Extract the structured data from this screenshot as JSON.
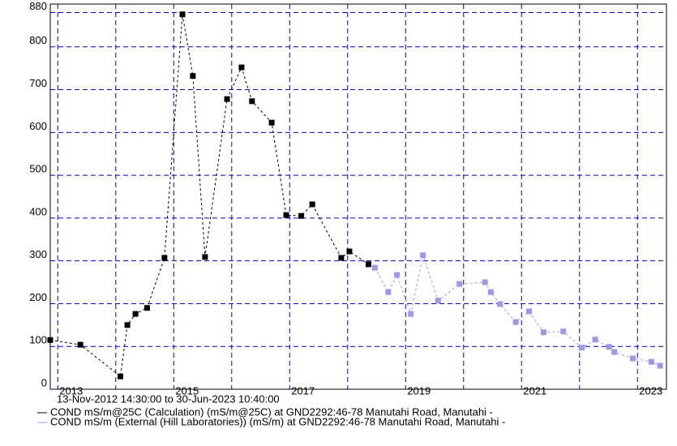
{
  "chart_data": {
    "type": "line",
    "subtitle": "13-Nov-2012 14:30:00 to 30-Jun-2023 10:40:00",
    "xlim": [
      2012.87,
      2023.5
    ],
    "xticks": [
      {
        "value": 2013,
        "label": "2013"
      },
      {
        "value": 2014,
        "label": null
      },
      {
        "value": 2015,
        "label": "2015"
      },
      {
        "value": 2016,
        "label": null
      },
      {
        "value": 2017,
        "label": "2017"
      },
      {
        "value": 2018,
        "label": null
      },
      {
        "value": 2019,
        "label": "2019"
      },
      {
        "value": 2020,
        "label": null
      },
      {
        "value": 2021,
        "label": "2021"
      },
      {
        "value": 2022,
        "label": null
      },
      {
        "value": 2023,
        "label": "2023"
      }
    ],
    "ylim": [
      0,
      900
    ],
    "yticks": [
      0,
      100,
      200,
      300,
      400,
      500,
      600,
      700,
      800,
      880
    ],
    "grid": true,
    "grid_color": "#0000cc",
    "series": [
      {
        "name": "COND mS/m@25C (Calculation) (mS/m@25C) at GND2292:46-78 Manutahi Road, Manutahi -",
        "color": "#000000",
        "x": [
          2012.87,
          2013.39,
          2014.08,
          2014.2,
          2014.34,
          2014.54,
          2014.84,
          2015.15,
          2015.33,
          2015.54,
          2015.92,
          2016.17,
          2016.35,
          2016.69,
          2016.94,
          2017.2,
          2017.39,
          2017.89,
          2018.03,
          2018.36
        ],
        "values": [
          115,
          104,
          30,
          150,
          176,
          190,
          307,
          876,
          732,
          309,
          678,
          752,
          673,
          623,
          407,
          405,
          432,
          307,
          322,
          292
        ]
      },
      {
        "name": "COND mS/m (External (Hill Laboratories)) (mS/m) at GND2292:46-78 Manutahi Road, Manutahi -",
        "color": "#9999ee",
        "x": [
          2018.47,
          2018.7,
          2018.85,
          2019.09,
          2019.3,
          2019.56,
          2019.93,
          2020.37,
          2020.47,
          2020.63,
          2020.9,
          2021.13,
          2021.38,
          2021.72,
          2022.04,
          2022.27,
          2022.51,
          2022.6,
          2022.92,
          2023.24,
          2023.39
        ],
        "values": [
          284,
          227,
          267,
          176,
          313,
          207,
          246,
          250,
          227,
          199,
          157,
          182,
          133,
          135,
          97,
          116,
          99,
          87,
          72,
          64,
          55
        ]
      }
    ]
  }
}
